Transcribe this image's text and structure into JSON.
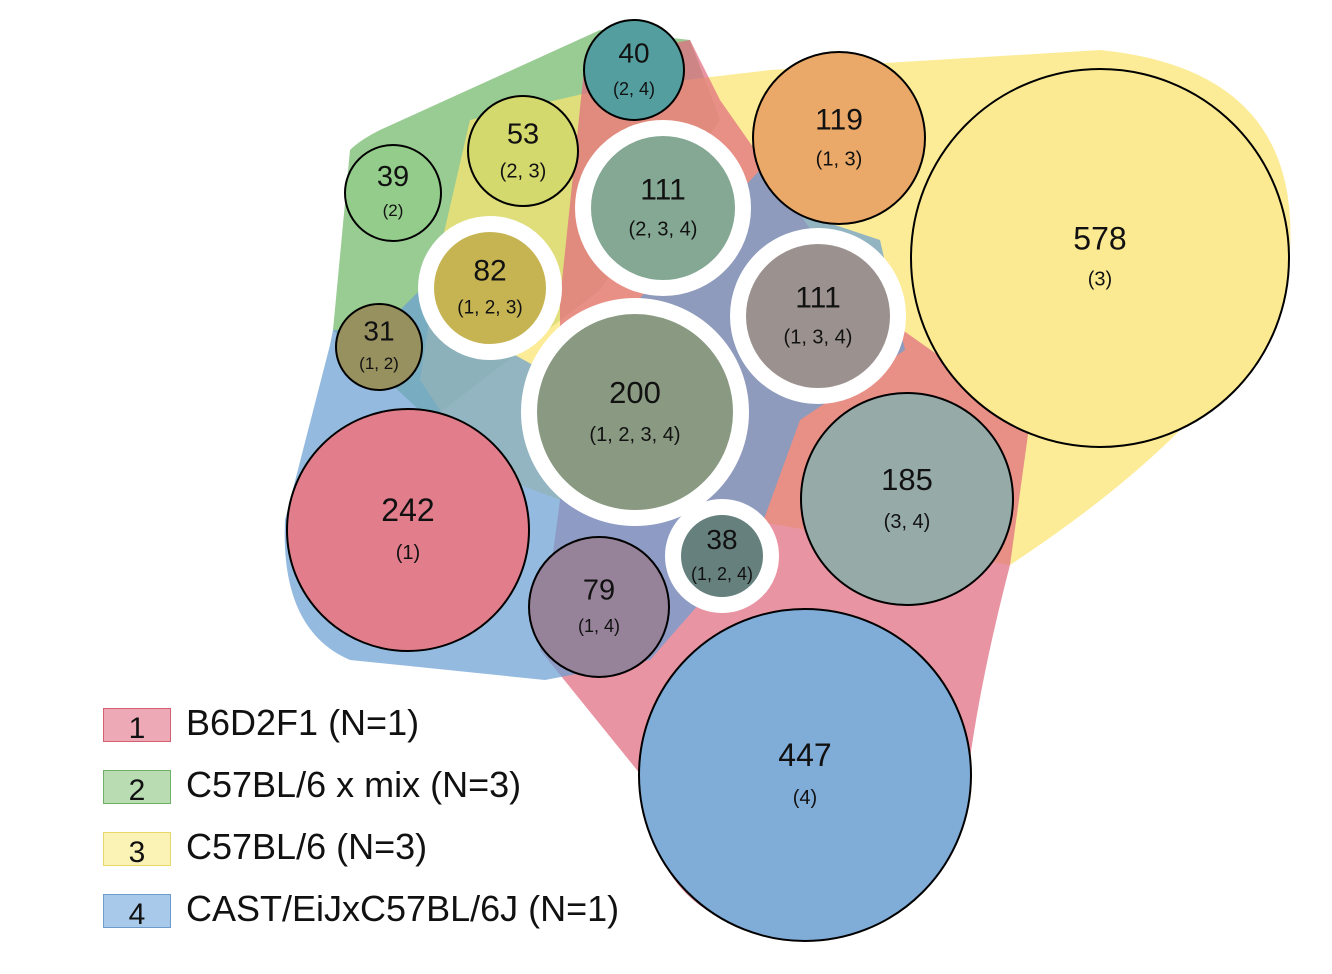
{
  "groups": [
    {
      "id": "1",
      "label": "B6D2F1 (N=1)",
      "color": "#e06b80",
      "swatch": "#edaab6",
      "swatch_border": "#d06072"
    },
    {
      "id": "2",
      "label": "C57BL/6 x mix (N=3)",
      "color": "#72b96a",
      "swatch": "#b9dcb3",
      "swatch_border": "#6fb067"
    },
    {
      "id": "3",
      "label": "C57BL/6 (N=3)",
      "color": "#fbe570",
      "swatch": "#fbf2b5",
      "swatch_border": "#e8d76a"
    },
    {
      "id": "4",
      "label": "CAST/EiJxC57BL/6J (N=1)",
      "color": "#6b9fd2",
      "swatch": "#a9c9ea",
      "swatch_border": "#6d9ccc"
    }
  ],
  "intersections": [
    {
      "count": "40",
      "combo": "(2, 4)",
      "fill": "#549e9f",
      "highlight": false
    },
    {
      "count": "53",
      "combo": "(2, 3)",
      "fill": "#d4d96d",
      "highlight": false
    },
    {
      "count": "39",
      "combo": "(2)",
      "fill": "#93cc8b",
      "highlight": false
    },
    {
      "count": "111",
      "combo": "(2, 3, 4)",
      "fill": "#84a893",
      "highlight": true
    },
    {
      "count": "119",
      "combo": "(1, 3)",
      "fill": "#eaa968",
      "highlight": false
    },
    {
      "count": "578",
      "combo": "(3)",
      "fill": "#fbea92",
      "highlight": false
    },
    {
      "count": "82",
      "combo": "(1, 2, 3)",
      "fill": "#c6b453",
      "highlight": true
    },
    {
      "count": "111",
      "combo": "(1, 3, 4)",
      "fill": "#9b9290",
      "highlight": true
    },
    {
      "count": "31",
      "combo": "(1, 2)",
      "fill": "#97905f",
      "highlight": false
    },
    {
      "count": "200",
      "combo": "(1, 2, 3, 4)",
      "fill": "#8a9a82",
      "highlight": true
    },
    {
      "count": "185",
      "combo": "(3, 4)",
      "fill": "#96aaa8",
      "highlight": false
    },
    {
      "count": "242",
      "combo": "(1)",
      "fill": "#e27d8c",
      "highlight": false
    },
    {
      "count": "38",
      "combo": "(1, 2, 4)",
      "fill": "#65807d",
      "highlight": true
    },
    {
      "count": "79",
      "combo": "(1, 4)",
      "fill": "#968299",
      "highlight": false
    },
    {
      "count": "447",
      "combo": "(4)",
      "fill": "#80acd8",
      "highlight": false
    }
  ]
}
